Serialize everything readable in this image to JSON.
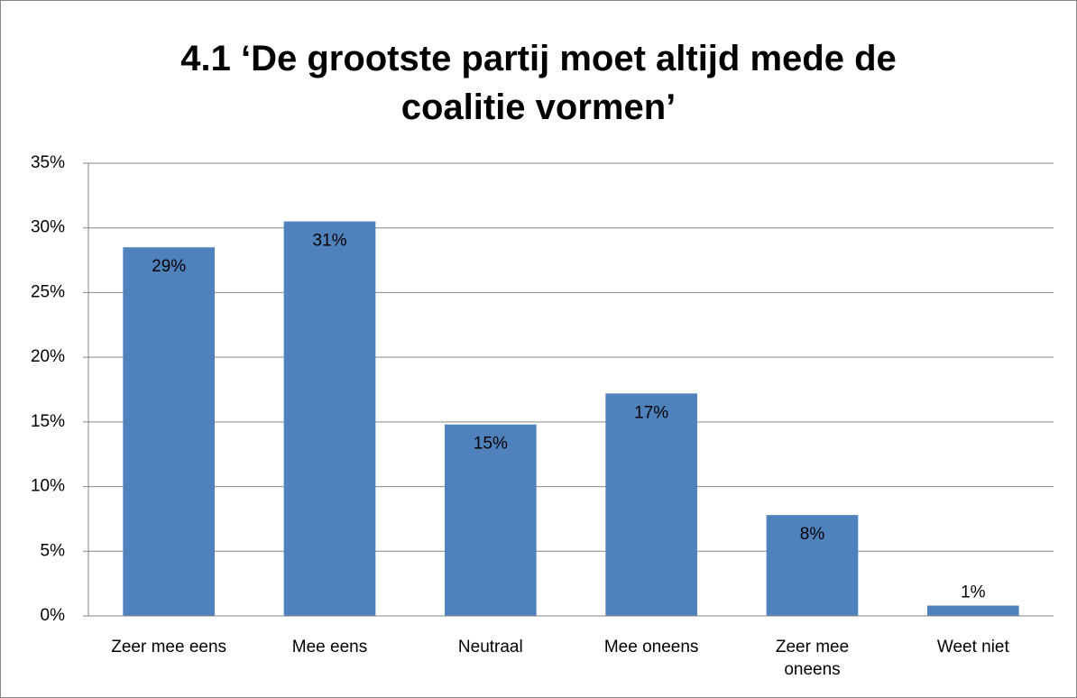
{
  "chart_data": {
    "type": "bar",
    "title": "4.1 ‘De grootste partij moet altijd mede de coalitie vormen’",
    "categories": [
      "Zeer mee eens",
      "Mee eens",
      "Neutraal",
      "Mee oneens",
      "Zeer mee oneens",
      "Weet niet"
    ],
    "values": [
      28.5,
      30.5,
      14.8,
      17.2,
      7.8,
      0.8
    ],
    "value_labels": [
      "29%",
      "31%",
      "15%",
      "17%",
      "8%",
      "1%"
    ],
    "color": "#4f81bd",
    "ylim": [
      0,
      35
    ],
    "yticks": [
      {
        "value": 0,
        "label": "0%"
      },
      {
        "value": 5,
        "label": "5%"
      },
      {
        "value": 10,
        "label": "10%"
      },
      {
        "value": 15,
        "label": "15%"
      },
      {
        "value": 20,
        "label": "20%"
      },
      {
        "value": 25,
        "label": "25%"
      },
      {
        "value": 30,
        "label": "30%"
      },
      {
        "value": 35,
        "label": "35%"
      }
    ],
    "grid": true
  }
}
